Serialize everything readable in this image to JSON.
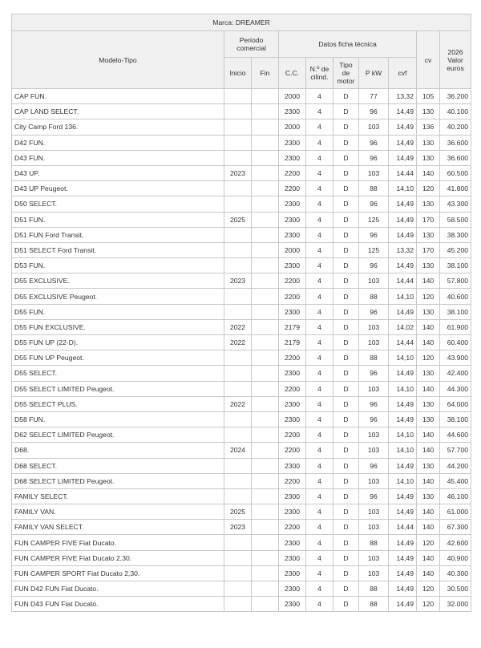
{
  "header": {
    "title": "Marca: DREAMER"
  },
  "table": {
    "columns": {
      "model": "Modelo-Tipo",
      "period": "Periodo comercial",
      "start": "Inicio",
      "end": "Fin",
      "specs": "Datos ficha técnica",
      "cc": "C.C.",
      "cyl": "N.º de cilind.",
      "motor": "Tipo de motor",
      "kw": "P kW",
      "cvf": "cvf",
      "cv": "cv",
      "value": "2026 Valor euros"
    },
    "rows": [
      [
        "CAP FUN.",
        null,
        null,
        "2000",
        "4",
        "D",
        "77",
        "13,32",
        "105",
        "36.200"
      ],
      [
        "CAP LAND SELECT.",
        null,
        null,
        "2300",
        "4",
        "D",
        "96",
        "14,49",
        "130",
        "40.100"
      ],
      [
        "City Camp Ford 136.",
        null,
        null,
        "2000",
        "4",
        "D",
        "103",
        "14,49",
        "136",
        "40.200"
      ],
      [
        "D42 FUN.",
        null,
        null,
        "2300",
        "4",
        "D",
        "96",
        "14,49",
        "130",
        "36.600"
      ],
      [
        "D43 FUN.",
        null,
        null,
        "2300",
        "4",
        "D",
        "96",
        "14,49",
        "130",
        "36.600"
      ],
      [
        "D43 UP.",
        "2023",
        null,
        "2200",
        "4",
        "D",
        "103",
        "14,44",
        "140",
        "60.500"
      ],
      [
        "D43 UP Peugeot.",
        null,
        null,
        "2200",
        "4",
        "D",
        "88",
        "14,10",
        "120",
        "41.800"
      ],
      [
        "D50 SELECT.",
        null,
        null,
        "2300",
        "4",
        "D",
        "96",
        "14,49",
        "130",
        "43.300"
      ],
      [
        "D51 FUN.",
        "2025",
        null,
        "2300",
        "4",
        "D",
        "125",
        "14,49",
        "170",
        "58.500"
      ],
      [
        "D51 FUN Ford Transit.",
        null,
        null,
        "2300",
        "4",
        "D",
        "96",
        "14,49",
        "130",
        "38.300"
      ],
      [
        "D51 SELECT Ford Transit.",
        null,
        null,
        "2000",
        "4",
        "D",
        "125",
        "13,32",
        "170",
        "45.200"
      ],
      [
        "D53 FUN.",
        null,
        null,
        "2300",
        "4",
        "D",
        "96",
        "14,49",
        "130",
        "38.100"
      ],
      [
        "D55 EXCLUSIVE.",
        "2023",
        null,
        "2200",
        "4",
        "D",
        "103",
        "14,44",
        "140",
        "57.800"
      ],
      [
        "D55 EXCLUSIVE Peugeot.",
        null,
        null,
        "2200",
        "4",
        "D",
        "88",
        "14,10",
        "120",
        "40.600"
      ],
      [
        "D55 FUN.",
        null,
        null,
        "2300",
        "4",
        "D",
        "96",
        "14,49",
        "130",
        "38.100"
      ],
      [
        "D55 FUN EXCLUSIVE.",
        "2022",
        null,
        "2179",
        "4",
        "D",
        "103",
        "14,02",
        "140",
        "61.900"
      ],
      [
        "D55 FUN UP (22-D).",
        "2022",
        null,
        "2179",
        "4",
        "D",
        "103",
        "14,44",
        "140",
        "60.400"
      ],
      [
        "D55 FUN UP Peugeot.",
        null,
        null,
        "2200",
        "4",
        "D",
        "88",
        "14,10",
        "120",
        "43.900"
      ],
      [
        "D55 SELECT.",
        null,
        null,
        "2300",
        "4",
        "D",
        "96",
        "14,49",
        "130",
        "42.400"
      ],
      [
        "D55 SELECT LIMITED Peugeot.",
        null,
        null,
        "2200",
        "4",
        "D",
        "103",
        "14,10",
        "140",
        "44.300"
      ],
      [
        "D55 SELECT PLUS.",
        "2022",
        null,
        "2300",
        "4",
        "D",
        "96",
        "14,49",
        "130",
        "64.000"
      ],
      [
        "D58 FUN.",
        null,
        null,
        "2300",
        "4",
        "D",
        "96",
        "14,49",
        "130",
        "38.100"
      ],
      [
        "D62 SELECT LIMITED Peugeot.",
        null,
        null,
        "2200",
        "4",
        "D",
        "103",
        "14,10",
        "140",
        "44.600"
      ],
      [
        "D68.",
        "2024",
        null,
        "2200",
        "4",
        "D",
        "103",
        "14,10",
        "140",
        "57.700"
      ],
      [
        "D68 SELECT.",
        null,
        null,
        "2300",
        "4",
        "D",
        "96",
        "14,49",
        "130",
        "44.200"
      ],
      [
        "D68 SELECT LIMITED Peugeot.",
        null,
        null,
        "2200",
        "4",
        "D",
        "103",
        "14,10",
        "140",
        "45.400"
      ],
      [
        "FAMILY SELECT.",
        null,
        null,
        "2300",
        "4",
        "D",
        "96",
        "14,49",
        "130",
        "46.100"
      ],
      [
        "FAMILY VAN.",
        "2025",
        null,
        "2300",
        "4",
        "D",
        "103",
        "14,49",
        "140",
        "61.000"
      ],
      [
        "FAMILY VAN SELECT.",
        "2023",
        null,
        "2200",
        "4",
        "D",
        "103",
        "14,44",
        "140",
        "67.300"
      ],
      [
        "FUN CAMPER FIVE Fiat Ducato.",
        null,
        null,
        "2300",
        "4",
        "D",
        "88",
        "14,49",
        "120",
        "42.600"
      ],
      [
        "FUN CAMPER FIVE Fiat Ducato 2,30.",
        null,
        null,
        "2300",
        "4",
        "D",
        "103",
        "14,49",
        "140",
        "40.900"
      ],
      [
        "FUN CAMPER SPORT Fiat Ducato 2,30.",
        null,
        null,
        "2300",
        "4",
        "D",
        "103",
        "14,49",
        "140",
        "40.300"
      ],
      [
        "FUN D42 FUN Fiat Ducato.",
        null,
        null,
        "2300",
        "4",
        "D",
        "88",
        "14,49",
        "120",
        "30.500"
      ],
      [
        "FUN D43 FUN Fiat Ducato.",
        null,
        null,
        "2300",
        "4",
        "D",
        "88",
        "14,49",
        "120",
        "32.000"
      ]
    ]
  }
}
